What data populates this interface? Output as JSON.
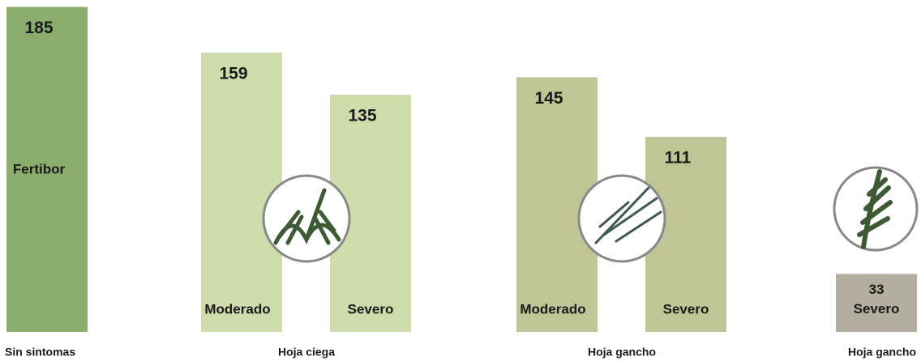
{
  "chart_data": {
    "type": "bar",
    "groups": [
      {
        "label": "Sin sintomas",
        "bars": [
          {
            "name": "Fertibor",
            "value": 185,
            "color": "#8aad6e"
          }
        ]
      },
      {
        "label": "Hoja ciega",
        "bars": [
          {
            "name": "Moderado",
            "value": 159,
            "color": "#cddcaa"
          },
          {
            "name": "Severo",
            "value": 135,
            "color": "#cddcaa"
          }
        ]
      },
      {
        "label": "Hoja gancho",
        "bars": [
          {
            "name": "Moderado",
            "value": 145,
            "color": "#c1c595"
          },
          {
            "name": "Severo",
            "value": 111,
            "color": "#c1c595"
          }
        ]
      },
      {
        "label": "Hoja gancho",
        "bars": [
          {
            "name": "Severo",
            "value": 33,
            "color": "#b3ae9f"
          }
        ]
      }
    ]
  }
}
